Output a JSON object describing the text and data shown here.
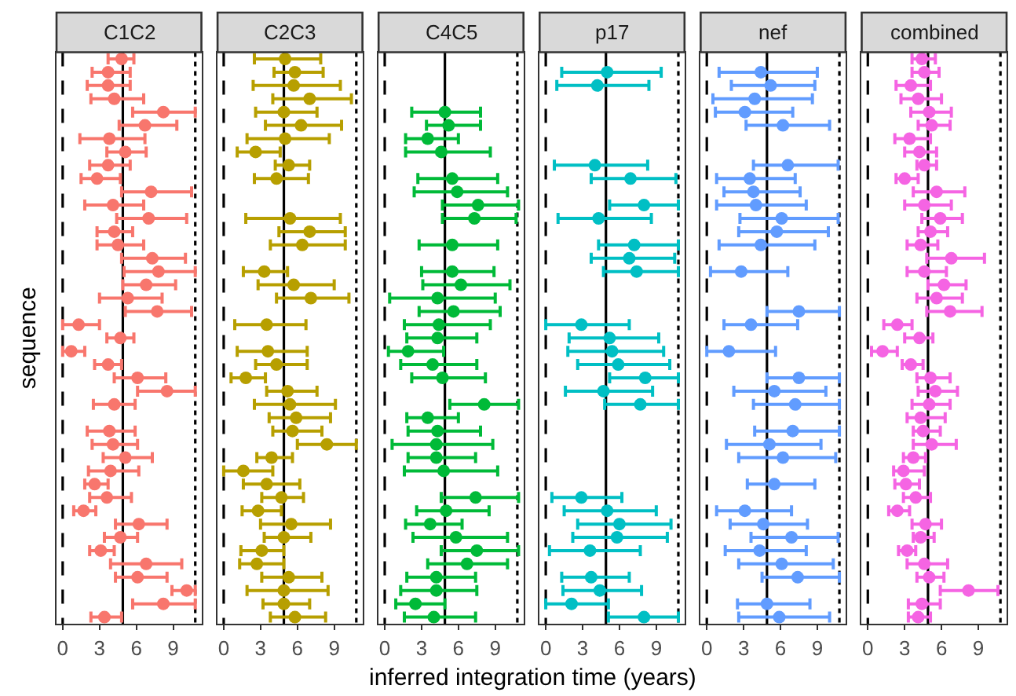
{
  "chart_data": [
    {
      "type": "scatter",
      "orientation": "horizontal",
      "title": "C1C2",
      "ylabel": "sequence",
      "marker": "circle",
      "tick_labels": "x",
      "xlim": [
        -0.5,
        11.3
      ],
      "xticks": [
        0,
        3,
        6,
        9
      ],
      "categories": [
        null,
        null,
        null,
        null,
        null,
        null,
        null,
        null,
        null,
        null,
        null,
        null,
        null,
        null,
        null,
        null,
        null,
        null,
        null,
        null,
        null,
        null,
        null,
        null,
        null,
        null,
        null,
        null,
        null,
        null,
        null,
        null,
        null,
        null,
        null,
        null,
        null,
        null,
        null,
        null,
        null,
        null,
        null
      ],
      "ref_lines": [
        {
          "axis": "x",
          "value": 0,
          "line_style": "dashed",
          "color": "#000000"
        },
        {
          "axis": "x",
          "value": 4.9,
          "line_style": "solid",
          "color": "#000000"
        },
        {
          "axis": "x",
          "value": 10.8,
          "line_style": "dotted",
          "color": "#000000"
        }
      ],
      "series": [
        {
          "color": "#f8766d",
          "values": [
            4.8,
            3.7,
            3.7,
            4.2,
            8.2,
            6.7,
            3.8,
            5.1,
            3.7,
            2.8,
            7.2,
            4.1,
            7.0,
            4.2,
            4.5,
            7.3,
            7.8,
            6.8,
            5.3,
            7.7,
            1.3,
            4.7,
            0.7,
            3.7,
            6.1,
            8.5,
            4.2,
            null,
            3.8,
            4.1,
            5.1,
            3.9,
            2.6,
            3.6,
            1.7,
            6.2,
            4.7,
            3.1,
            6.8,
            6.1,
            10.1,
            8.2,
            3.4
          ],
          "errors": [
            [
              3.7,
              5.8
            ],
            [
              2.4,
              5.5
            ],
            [
              2.0,
              5.5
            ],
            [
              2.3,
              6.6
            ],
            [
              5.7,
              10.8
            ],
            [
              4.6,
              9.3
            ],
            [
              1.4,
              6.7
            ],
            [
              3.6,
              6.8
            ],
            [
              2.2,
              5.5
            ],
            [
              1.5,
              4.7
            ],
            [
              4.8,
              10.5
            ],
            [
              1.8,
              6.6
            ],
            [
              4.4,
              10.1
            ],
            [
              2.8,
              5.7
            ],
            [
              2.8,
              6.6
            ],
            [
              4.8,
              10.0
            ],
            [
              5.0,
              10.8
            ],
            [
              4.9,
              9.2
            ],
            [
              3.0,
              8.1
            ],
            [
              5.1,
              10.5
            ],
            [
              0,
              3.0
            ],
            [
              3.6,
              5.8
            ],
            [
              0,
              1.8
            ],
            [
              2.6,
              4.8
            ],
            [
              4.2,
              8.4
            ],
            [
              6.1,
              10.8
            ],
            [
              2.5,
              5.9
            ],
            null,
            [
              2.0,
              5.9
            ],
            [
              2.4,
              6.1
            ],
            [
              3.3,
              7.3
            ],
            [
              2.1,
              6.2
            ],
            [
              1.8,
              3.7
            ],
            [
              2.2,
              5.6
            ],
            [
              0.9,
              2.7
            ],
            [
              4.3,
              8.5
            ],
            [
              3.4,
              6.1
            ],
            [
              2.2,
              4.2
            ],
            [
              3.9,
              9.7
            ],
            [
              4.3,
              8.5
            ],
            [
              8.9,
              10.8
            ],
            [
              5.7,
              10.8
            ],
            [
              2.3,
              4.8
            ]
          ]
        }
      ]
    },
    {
      "type": "scatter",
      "orientation": "horizontal",
      "title": "C2C3",
      "marker": "circle",
      "tick_labels": "x",
      "xlim": [
        -0.5,
        11.3
      ],
      "xticks": [
        0,
        3,
        6,
        9
      ],
      "categories": [
        null,
        null,
        null,
        null,
        null,
        null,
        null,
        null,
        null,
        null,
        null,
        null,
        null,
        null,
        null,
        null,
        null,
        null,
        null,
        null,
        null,
        null,
        null,
        null,
        null,
        null,
        null,
        null,
        null,
        null,
        null,
        null,
        null,
        null,
        null,
        null,
        null,
        null,
        null,
        null,
        null,
        null,
        null
      ],
      "ref_lines": [
        {
          "axis": "x",
          "value": 0,
          "line_style": "dashed",
          "color": "#000000"
        },
        {
          "axis": "x",
          "value": 4.9,
          "line_style": "solid",
          "color": "#000000"
        },
        {
          "axis": "x",
          "value": 10.8,
          "line_style": "dotted",
          "color": "#000000"
        }
      ],
      "series": [
        {
          "color": "#b79f00",
          "values": [
            5.0,
            5.8,
            5.7,
            7.0,
            4.9,
            6.3,
            5.0,
            2.6,
            5.3,
            4.3,
            null,
            null,
            5.4,
            7.0,
            6.4,
            null,
            3.3,
            5.7,
            7.1,
            null,
            3.5,
            null,
            3.6,
            4.3,
            1.8,
            5.2,
            5.4,
            5.9,
            5.6,
            8.4,
            3.9,
            1.6,
            3.5,
            4.7,
            2.8,
            5.5,
            4.9,
            3.1,
            2.7,
            5.3,
            4.9,
            4.9,
            5.8
          ],
          "errors": [
            [
              2.5,
              7.9
            ],
            [
              4.1,
              8.1
            ],
            [
              2.4,
              9.5
            ],
            [
              4.0,
              10.4
            ],
            [
              2.6,
              7.6
            ],
            [
              3.4,
              9.6
            ],
            [
              1.9,
              8.6
            ],
            [
              1.1,
              4.6
            ],
            [
              4.2,
              7.0
            ],
            [
              2.5,
              6.9
            ],
            null,
            null,
            [
              1.8,
              9.5
            ],
            [
              4.5,
              9.9
            ],
            [
              3.8,
              9.9
            ],
            null,
            [
              1.6,
              5.2
            ],
            [
              2.8,
              9.0
            ],
            [
              4.3,
              10.2
            ],
            null,
            [
              0.9,
              6.7
            ],
            null,
            [
              1.1,
              6.8
            ],
            [
              2.6,
              6.8
            ],
            [
              0.6,
              3.4
            ],
            [
              3.5,
              7.6
            ],
            [
              2.5,
              9.1
            ],
            [
              3.7,
              8.7
            ],
            [
              4.0,
              8.0
            ],
            [
              6.0,
              10.8
            ],
            [
              2.7,
              5.6
            ],
            [
              0,
              4.0
            ],
            [
              1.6,
              6.2
            ],
            [
              3.1,
              6.5
            ],
            [
              1.5,
              4.7
            ],
            [
              3.0,
              8.7
            ],
            [
              3.3,
              7.1
            ],
            [
              1.4,
              4.9
            ],
            [
              1.3,
              4.9
            ],
            [
              3.1,
              8.0
            ],
            [
              1.9,
              8.5
            ],
            [
              3.2,
              7.0
            ],
            [
              3.8,
              8.3
            ]
          ]
        }
      ]
    },
    {
      "type": "scatter",
      "orientation": "horizontal",
      "title": "C4C5",
      "marker": "circle",
      "tick_labels": "x",
      "xlim": [
        -0.5,
        11.3
      ],
      "xticks": [
        0,
        3,
        6,
        9
      ],
      "categories": [
        null,
        null,
        null,
        null,
        null,
        null,
        null,
        null,
        null,
        null,
        null,
        null,
        null,
        null,
        null,
        null,
        null,
        null,
        null,
        null,
        null,
        null,
        null,
        null,
        null,
        null,
        null,
        null,
        null,
        null,
        null,
        null,
        null,
        null,
        null,
        null,
        null,
        null,
        null,
        null,
        null,
        null,
        null
      ],
      "ref_lines": [
        {
          "axis": "x",
          "value": 0,
          "line_style": "dashed",
          "color": "#000000"
        },
        {
          "axis": "x",
          "value": 4.9,
          "line_style": "solid",
          "color": "#000000"
        },
        {
          "axis": "x",
          "value": 10.8,
          "line_style": "dotted",
          "color": "#000000"
        }
      ],
      "series": [
        {
          "color": "#00ba38",
          "values": [
            null,
            null,
            null,
            null,
            4.9,
            5.2,
            3.5,
            4.6,
            null,
            5.5,
            5.9,
            7.6,
            7.3,
            null,
            5.5,
            null,
            5.5,
            6.2,
            4.3,
            5.6,
            4.4,
            4.3,
            1.9,
            3.9,
            4.7,
            null,
            8.1,
            3.5,
            4.3,
            4.2,
            4.2,
            4.8,
            null,
            7.4,
            5.0,
            3.7,
            5.8,
            7.5,
            6.7,
            4.2,
            4.2,
            2.5,
            4.0
          ],
          "errors": [
            null,
            null,
            null,
            null,
            [
              2.2,
              7.8
            ],
            [
              3.4,
              7.8
            ],
            [
              1.7,
              6.0
            ],
            [
              1.7,
              8.6
            ],
            null,
            [
              2.7,
              9.2
            ],
            [
              2.4,
              10.0
            ],
            [
              4.7,
              10.9
            ],
            [
              4.7,
              10.7
            ],
            null,
            [
              2.8,
              9.2
            ],
            null,
            [
              3.0,
              8.9
            ],
            [
              3.1,
              10.2
            ],
            [
              0.4,
              9.0
            ],
            [
              2.8,
              9.4
            ],
            [
              1.6,
              8.6
            ],
            [
              1.8,
              7.5
            ],
            [
              0.3,
              4.8
            ],
            [
              1.3,
              7.5
            ],
            [
              2.2,
              8.2
            ],
            null,
            [
              5.3,
              10.9
            ],
            [
              1.8,
              6.0
            ],
            [
              1.9,
              7.8
            ],
            [
              0.6,
              8.8
            ],
            [
              1.9,
              7.4
            ],
            [
              1.6,
              9.2
            ],
            null,
            [
              4.6,
              10.9
            ],
            [
              2.6,
              8.5
            ],
            [
              1.7,
              6.3
            ],
            [
              2.3,
              10.0
            ],
            [
              4.6,
              10.9
            ],
            [
              3.5,
              10.0
            ],
            [
              1.8,
              7.4
            ],
            [
              1.3,
              7.5
            ],
            [
              0.9,
              4.9
            ],
            [
              1.6,
              7.4
            ]
          ]
        }
      ]
    },
    {
      "type": "scatter",
      "orientation": "horizontal",
      "title": "p17",
      "xlabel": "inferred integration time (years)",
      "marker": "circle",
      "tick_labels": "x",
      "xlim": [
        -0.5,
        11.3
      ],
      "xticks": [
        0,
        3,
        6,
        9
      ],
      "categories": [
        null,
        null,
        null,
        null,
        null,
        null,
        null,
        null,
        null,
        null,
        null,
        null,
        null,
        null,
        null,
        null,
        null,
        null,
        null,
        null,
        null,
        null,
        null,
        null,
        null,
        null,
        null,
        null,
        null,
        null,
        null,
        null,
        null,
        null,
        null,
        null,
        null,
        null,
        null,
        null,
        null,
        null,
        null
      ],
      "ref_lines": [
        {
          "axis": "x",
          "value": 0,
          "line_style": "dashed",
          "color": "#000000"
        },
        {
          "axis": "x",
          "value": 4.9,
          "line_style": "solid",
          "color": "#000000"
        },
        {
          "axis": "x",
          "value": 10.8,
          "line_style": "dotted",
          "color": "#000000"
        }
      ],
      "series": [
        {
          "color": "#00bfc4",
          "values": [
            null,
            5.0,
            4.2,
            null,
            null,
            null,
            null,
            null,
            4.0,
            6.9,
            null,
            8.0,
            4.3,
            null,
            7.2,
            6.8,
            7.4,
            null,
            null,
            null,
            2.9,
            5.2,
            5.4,
            5.9,
            8.1,
            4.7,
            7.7,
            null,
            null,
            null,
            null,
            null,
            null,
            2.9,
            5.0,
            6.0,
            5.8,
            3.6,
            null,
            3.7,
            4.4,
            2.1,
            8.0
          ],
          "errors": [
            null,
            [
              1.3,
              9.4
            ],
            [
              0.9,
              8.4
            ],
            null,
            null,
            null,
            null,
            null,
            [
              0.7,
              8.3
            ],
            [
              3.7,
              10.6
            ],
            null,
            [
              5.2,
              10.8
            ],
            [
              1.0,
              8.6
            ],
            null,
            [
              4.3,
              10.8
            ],
            [
              3.7,
              10.5
            ],
            [
              4.7,
              10.8
            ],
            null,
            null,
            null,
            [
              0,
              6.8
            ],
            [
              1.9,
              9.2
            ],
            [
              1.8,
              9.6
            ],
            [
              2.6,
              10.1
            ],
            [
              5.2,
              10.8
            ],
            [
              1.6,
              8.7
            ],
            [
              4.8,
              10.8
            ],
            null,
            null,
            null,
            null,
            null,
            null,
            [
              0.5,
              6.2
            ],
            [
              1.5,
              9.0
            ],
            [
              2.6,
              10.2
            ],
            [
              2.2,
              9.9
            ],
            [
              0.3,
              7.7
            ],
            null,
            [
              1.3,
              6.8
            ],
            [
              1.4,
              7.8
            ],
            [
              0,
              5.1
            ],
            [
              5.1,
              10.8
            ]
          ]
        }
      ]
    },
    {
      "type": "scatter",
      "orientation": "horizontal",
      "title": "nef",
      "marker": "circle",
      "tick_labels": "x",
      "xlim": [
        -0.5,
        11.3
      ],
      "xticks": [
        0,
        3,
        6,
        9
      ],
      "categories": [
        null,
        null,
        null,
        null,
        null,
        null,
        null,
        null,
        null,
        null,
        null,
        null,
        null,
        null,
        null,
        null,
        null,
        null,
        null,
        null,
        null,
        null,
        null,
        null,
        null,
        null,
        null,
        null,
        null,
        null,
        null,
        null,
        null,
        null,
        null,
        null,
        null,
        null,
        null,
        null,
        null,
        null,
        null
      ],
      "ref_lines": [
        {
          "axis": "x",
          "value": 0,
          "line_style": "dashed",
          "color": "#000000"
        },
        {
          "axis": "x",
          "value": 4.9,
          "line_style": "solid",
          "color": "#000000"
        },
        {
          "axis": "x",
          "value": 10.8,
          "line_style": "dotted",
          "color": "#000000"
        }
      ],
      "series": [
        {
          "color": "#619cff",
          "values": [
            null,
            4.4,
            5.2,
            3.9,
            3.1,
            6.2,
            null,
            null,
            6.6,
            3.5,
            3.8,
            4.0,
            6.1,
            5.7,
            4.4,
            null,
            2.8,
            null,
            null,
            7.5,
            3.6,
            null,
            1.8,
            null,
            7.5,
            5.5,
            7.2,
            null,
            7.0,
            5.1,
            6.2,
            null,
            5.5,
            null,
            3.1,
            4.6,
            6.9,
            4.3,
            6.1,
            7.4,
            null,
            4.9,
            5.9
          ],
          "errors": [
            null,
            [
              1.0,
              9.0
            ],
            [
              2.0,
              8.8
            ],
            [
              0.5,
              8.6
            ],
            [
              0.7,
              7.0
            ],
            [
              3.2,
              10.0
            ],
            null,
            null,
            [
              3.8,
              10.7
            ],
            [
              0.8,
              7.2
            ],
            [
              1.4,
              7.6
            ],
            [
              0.8,
              8.1
            ],
            [
              2.7,
              10.7
            ],
            [
              2.6,
              9.9
            ],
            [
              1.0,
              8.8
            ],
            null,
            [
              0.3,
              6.6
            ],
            null,
            null,
            [
              4.9,
              10.8
            ],
            [
              1.4,
              7.4
            ],
            null,
            [
              0,
              5.6
            ],
            null,
            [
              4.9,
              10.8
            ],
            [
              2.2,
              9.7
            ],
            [
              3.8,
              10.8
            ],
            null,
            [
              3.9,
              10.8
            ],
            [
              1.6,
              9.3
            ],
            [
              2.6,
              10.5
            ],
            null,
            [
              3.3,
              8.8
            ],
            null,
            [
              0.8,
              6.9
            ],
            [
              1.9,
              8.2
            ],
            [
              3.6,
              10.7
            ],
            [
              1.5,
              8.1
            ],
            [
              2.6,
              10.3
            ],
            [
              4.5,
              10.8
            ],
            null,
            [
              2.5,
              8.4
            ],
            [
              2.6,
              10.0
            ]
          ]
        }
      ]
    },
    {
      "type": "scatter",
      "orientation": "horizontal",
      "title": "combined",
      "marker": "circle",
      "tick_labels": "x",
      "xlim": [
        -0.5,
        11.3
      ],
      "xticks": [
        0,
        3,
        6,
        9
      ],
      "categories": [
        null,
        null,
        null,
        null,
        null,
        null,
        null,
        null,
        null,
        null,
        null,
        null,
        null,
        null,
        null,
        null,
        null,
        null,
        null,
        null,
        null,
        null,
        null,
        null,
        null,
        null,
        null,
        null,
        null,
        null,
        null,
        null,
        null,
        null,
        null,
        null,
        null,
        null,
        null,
        null,
        null,
        null,
        null
      ],
      "ref_lines": [
        {
          "axis": "x",
          "value": 0,
          "line_style": "dashed",
          "color": "#000000"
        },
        {
          "axis": "x",
          "value": 4.9,
          "line_style": "solid",
          "color": "#000000"
        },
        {
          "axis": "x",
          "value": 10.8,
          "line_style": "dotted",
          "color": "#000000"
        }
      ],
      "series": [
        {
          "color": "#f564e3",
          "values": [
            4.4,
            4.6,
            3.5,
            4.1,
            5.0,
            5.2,
            3.4,
            4.2,
            4.6,
            3.0,
            5.6,
            4.6,
            5.9,
            5.1,
            4.3,
            6.8,
            4.6,
            6.2,
            5.6,
            6.7,
            2.4,
            4.2,
            1.2,
            3.5,
            5.1,
            5.5,
            5.0,
            4.3,
            4.5,
            5.2,
            3.7,
            2.9,
            3.1,
            3.9,
            2.4,
            4.7,
            4.3,
            3.2,
            4.6,
            5.0,
            8.2,
            4.4,
            4.1
          ],
          "errors": [
            [
              3.6,
              5.5
            ],
            [
              3.6,
              5.8
            ],
            [
              2.3,
              5.1
            ],
            [
              2.7,
              6.0
            ],
            [
              3.5,
              6.8
            ],
            [
              4.1,
              6.7
            ],
            [
              2.2,
              5.1
            ],
            [
              3.0,
              5.6
            ],
            [
              4.0,
              5.6
            ],
            [
              2.3,
              4.1
            ],
            [
              3.7,
              7.9
            ],
            [
              3.0,
              6.8
            ],
            [
              4.4,
              7.7
            ],
            [
              4.1,
              6.5
            ],
            [
              3.2,
              5.7
            ],
            [
              4.8,
              9.5
            ],
            [
              3.2,
              6.4
            ],
            [
              4.9,
              8.0
            ],
            [
              4.0,
              7.7
            ],
            [
              4.8,
              9.3
            ],
            [
              1.3,
              3.6
            ],
            [
              3.0,
              5.3
            ],
            [
              0.3,
              2.4
            ],
            [
              2.8,
              4.5
            ],
            [
              4.0,
              6.7
            ],
            [
              4.1,
              7.3
            ],
            [
              3.6,
              6.7
            ],
            [
              3.2,
              6.3
            ],
            [
              3.7,
              5.9
            ],
            [
              3.7,
              7.2
            ],
            [
              2.9,
              4.7
            ],
            [
              2.1,
              4.6
            ],
            [
              2.2,
              4.2
            ],
            [
              2.9,
              5.1
            ],
            [
              1.7,
              3.4
            ],
            [
              3.6,
              6.0
            ],
            [
              3.7,
              5.4
            ],
            [
              2.5,
              3.9
            ],
            [
              3.2,
              6.5
            ],
            [
              4.0,
              6.2
            ],
            [
              5.9,
              10.6
            ],
            [
              3.3,
              5.9
            ],
            [
              3.3,
              5.1
            ]
          ]
        }
      ]
    }
  ]
}
